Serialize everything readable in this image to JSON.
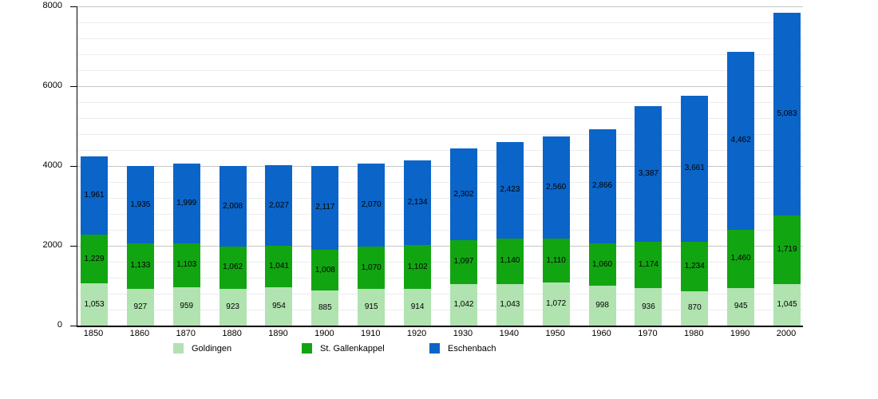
{
  "chart_data": {
    "type": "bar",
    "stacked": true,
    "title": "",
    "xlabel": "",
    "ylabel": "",
    "categories": [
      "1850",
      "1860",
      "1870",
      "1880",
      "1890",
      "1900",
      "1910",
      "1920",
      "1930",
      "1940",
      "1950",
      "1960",
      "1970",
      "1980",
      "1990",
      "2000"
    ],
    "series": [
      {
        "name": "Goldingen",
        "color": "#b0e3b0",
        "values": [
          1053,
          927,
          959,
          923,
          954,
          885,
          915,
          914,
          1042,
          1043,
          1072,
          998,
          936,
          870,
          945,
          1045
        ]
      },
      {
        "name": "St. Gallenkappel",
        "color": "#12a512",
        "values": [
          1229,
          1133,
          1103,
          1062,
          1041,
          1008,
          1070,
          1102,
          1097,
          1140,
          1110,
          1060,
          1174,
          1234,
          1460,
          1719
        ]
      },
      {
        "name": "Eschenbach",
        "color": "#0b64c8",
        "values": [
          1961,
          1935,
          1999,
          2008,
          2027,
          2117,
          2070,
          2134,
          2302,
          2423,
          2560,
          2866,
          3387,
          3661,
          4462,
          5083
        ]
      }
    ],
    "ylim": [
      0,
      8000
    ],
    "yticks": [
      0,
      2000,
      4000,
      6000,
      8000
    ],
    "minor_grid_step": 400,
    "grid": true,
    "legend_position": "bottom",
    "value_label_format": "thousands-comma",
    "axis_color": "#000000"
  }
}
